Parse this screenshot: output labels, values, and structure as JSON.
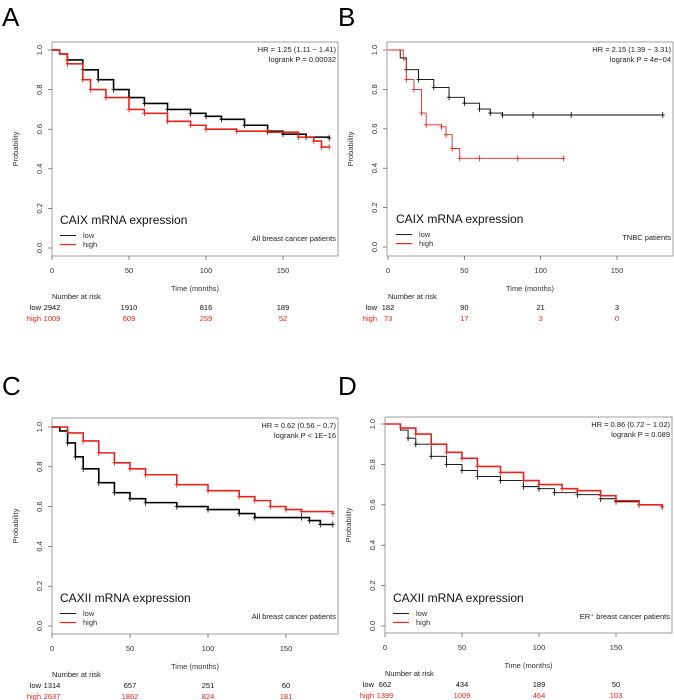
{
  "chart_data": [
    {
      "type": "line",
      "panel_label": "A",
      "title": "CAIX mRNA expression",
      "subtitle": "All breast cancer patients",
      "hr_text": "HR = 1.25 (1.11 − 1.41)",
      "p_text": "logrank P = 0.00032",
      "xlabel": "Time (months)",
      "ylabel": "Probability",
      "xlim": [
        0,
        180
      ],
      "ylim": [
        0,
        1
      ],
      "xticks": [
        0,
        50,
        100,
        150
      ],
      "yticks": [
        "0.0",
        "0.2",
        "0.4",
        "0.6",
        "0.8",
        "1.0"
      ],
      "legend": [
        "low",
        "high"
      ],
      "risk_header": "Number at risk",
      "risk": {
        "low": [
          "2942",
          "1910",
          "816",
          "189"
        ],
        "high": [
          "1009",
          "609",
          "259",
          "52"
        ]
      },
      "series": [
        {
          "name": "low",
          "color": "#000000",
          "points": [
            [
              0,
              1
            ],
            [
              5,
              0.98
            ],
            [
              10,
              0.95
            ],
            [
              20,
              0.9
            ],
            [
              30,
              0.85
            ],
            [
              40,
              0.8
            ],
            [
              50,
              0.76
            ],
            [
              60,
              0.73
            ],
            [
              75,
              0.7
            ],
            [
              90,
              0.68
            ],
            [
              100,
              0.665
            ],
            [
              110,
              0.65
            ],
            [
              125,
              0.62
            ],
            [
              140,
              0.59
            ],
            [
              150,
              0.575
            ],
            [
              165,
              0.56
            ],
            [
              180,
              0.555
            ]
          ]
        },
        {
          "name": "high",
          "color": "#e8231d",
          "points": [
            [
              0,
              1
            ],
            [
              5,
              0.98
            ],
            [
              10,
              0.93
            ],
            [
              20,
              0.85
            ],
            [
              25,
              0.8
            ],
            [
              35,
              0.76
            ],
            [
              50,
              0.7
            ],
            [
              60,
              0.68
            ],
            [
              75,
              0.64
            ],
            [
              90,
              0.62
            ],
            [
              100,
              0.6
            ],
            [
              120,
              0.59
            ],
            [
              140,
              0.585
            ],
            [
              160,
              0.56
            ],
            [
              170,
              0.54
            ],
            [
              175,
              0.51
            ],
            [
              180,
              0.51
            ]
          ]
        }
      ]
    },
    {
      "type": "line",
      "panel_label": "B",
      "title": "CAIX mRNA expression",
      "subtitle": "TNBC patients",
      "hr_text": "HR = 2.15 (1.39 − 3.31)",
      "p_text": "logrank P = 4e−04",
      "xlabel": "Time (months)",
      "ylabel": "Probability",
      "xlim": [
        0,
        180
      ],
      "ylim": [
        0,
        1
      ],
      "xticks": [
        0,
        50,
        100,
        150
      ],
      "yticks": [
        "0.0",
        "0.2",
        "0.4",
        "0.6",
        "0.8",
        "1.0"
      ],
      "legend": [
        "low",
        "high"
      ],
      "risk_header": "Number at risk",
      "risk": {
        "low": [
          "182",
          "90",
          "21",
          "3"
        ],
        "high": [
          "73",
          "17",
          "3",
          "0"
        ]
      },
      "series": [
        {
          "name": "low",
          "color": "#000000",
          "points": [
            [
              0,
              1
            ],
            [
              8,
              0.96
            ],
            [
              12,
              0.9
            ],
            [
              20,
              0.85
            ],
            [
              30,
              0.81
            ],
            [
              40,
              0.76
            ],
            [
              50,
              0.73
            ],
            [
              60,
              0.7
            ],
            [
              67,
              0.68
            ],
            [
              75,
              0.67
            ],
            [
              95,
              0.67
            ],
            [
              120,
              0.67
            ],
            [
              180,
              0.67
            ]
          ]
        },
        {
          "name": "high",
          "color": "#e8231d",
          "points": [
            [
              0,
              1
            ],
            [
              10,
              0.95
            ],
            [
              12,
              0.85
            ],
            [
              17,
              0.8
            ],
            [
              22,
              0.68
            ],
            [
              25,
              0.62
            ],
            [
              35,
              0.61
            ],
            [
              38,
              0.57
            ],
            [
              42,
              0.5
            ],
            [
              47,
              0.45
            ],
            [
              60,
              0.45
            ],
            [
              85,
              0.45
            ],
            [
              115,
              0.45
            ]
          ]
        }
      ]
    },
    {
      "type": "line",
      "panel_label": "C",
      "title": "CAXII mRNA expression",
      "subtitle": "All breast cancer patients",
      "hr_text": "HR = 0.62 (0.56 − 0.7)",
      "p_text": "logrank P < 1E−16",
      "xlabel": "Time (months)",
      "ylabel": "Probability",
      "xlim": [
        0,
        180
      ],
      "ylim": [
        0,
        1
      ],
      "xticks": [
        0,
        50,
        100,
        150
      ],
      "yticks": [
        "0.0",
        "0.2",
        "0.4",
        "0.6",
        "0.8",
        "1.0"
      ],
      "legend": [
        "low",
        "high"
      ],
      "risk_header": "Number at risk",
      "risk": {
        "low": [
          "1314",
          "657",
          "251",
          "60"
        ],
        "high": [
          "2637",
          "1862",
          "824",
          "181"
        ]
      },
      "series": [
        {
          "name": "low",
          "color": "#000000",
          "points": [
            [
              0,
              1
            ],
            [
              5,
              0.98
            ],
            [
              10,
              0.92
            ],
            [
              15,
              0.85
            ],
            [
              20,
              0.79
            ],
            [
              30,
              0.72
            ],
            [
              40,
              0.67
            ],
            [
              50,
              0.64
            ],
            [
              60,
              0.62
            ],
            [
              80,
              0.6
            ],
            [
              100,
              0.585
            ],
            [
              120,
              0.565
            ],
            [
              130,
              0.545
            ],
            [
              160,
              0.545
            ],
            [
              165,
              0.53
            ],
            [
              172,
              0.51
            ],
            [
              180,
              0.51
            ]
          ]
        },
        {
          "name": "high",
          "color": "#e8231d",
          "points": [
            [
              0,
              1
            ],
            [
              10,
              0.97
            ],
            [
              20,
              0.93
            ],
            [
              30,
              0.87
            ],
            [
              40,
              0.82
            ],
            [
              50,
              0.79
            ],
            [
              60,
              0.76
            ],
            [
              80,
              0.71
            ],
            [
              100,
              0.68
            ],
            [
              120,
              0.65
            ],
            [
              130,
              0.63
            ],
            [
              140,
              0.6
            ],
            [
              150,
              0.585
            ],
            [
              160,
              0.575
            ],
            [
              180,
              0.565
            ]
          ]
        }
      ]
    },
    {
      "type": "line",
      "panel_label": "D",
      "title": "CAXII mRNA expression",
      "subtitle": "ER⁺ breast cancer patients",
      "hr_text": "HR = 0.86 (0.72 − 1.02)",
      "p_text": "logrank P = 0.089",
      "xlabel": "Time (months)",
      "ylabel": "Probability",
      "xlim": [
        0,
        180
      ],
      "ylim": [
        0,
        1
      ],
      "xticks": [
        0,
        50,
        100,
        150
      ],
      "yticks": [
        "0.0",
        "0.2",
        "0.4",
        "0.6",
        "0.8",
        "1.0"
      ],
      "legend": [
        "low",
        "high"
      ],
      "risk_header": "Number at risk",
      "risk": {
        "low": [
          "662",
          "434",
          "189",
          "50"
        ],
        "high": [
          "1399",
          "1009",
          "464",
          "103"
        ]
      },
      "series": [
        {
          "name": "low",
          "color": "#000000",
          "points": [
            [
              0,
              1
            ],
            [
              10,
              0.97
            ],
            [
              15,
              0.93
            ],
            [
              20,
              0.9
            ],
            [
              30,
              0.84
            ],
            [
              40,
              0.8
            ],
            [
              50,
              0.77
            ],
            [
              60,
              0.74
            ],
            [
              75,
              0.72
            ],
            [
              90,
              0.69
            ],
            [
              100,
              0.68
            ],
            [
              110,
              0.66
            ],
            [
              125,
              0.65
            ],
            [
              140,
              0.63
            ],
            [
              150,
              0.615
            ],
            [
              165,
              0.6
            ],
            [
              180,
              0.59
            ]
          ]
        },
        {
          "name": "high",
          "color": "#e8231d",
          "points": [
            [
              0,
              1
            ],
            [
              10,
              0.98
            ],
            [
              20,
              0.95
            ],
            [
              30,
              0.9
            ],
            [
              40,
              0.86
            ],
            [
              50,
              0.83
            ],
            [
              60,
              0.79
            ],
            [
              75,
              0.76
            ],
            [
              90,
              0.72
            ],
            [
              100,
              0.7
            ],
            [
              115,
              0.68
            ],
            [
              125,
              0.67
            ],
            [
              140,
              0.645
            ],
            [
              150,
              0.62
            ],
            [
              165,
              0.6
            ],
            [
              180,
              0.59
            ]
          ]
        }
      ]
    }
  ]
}
